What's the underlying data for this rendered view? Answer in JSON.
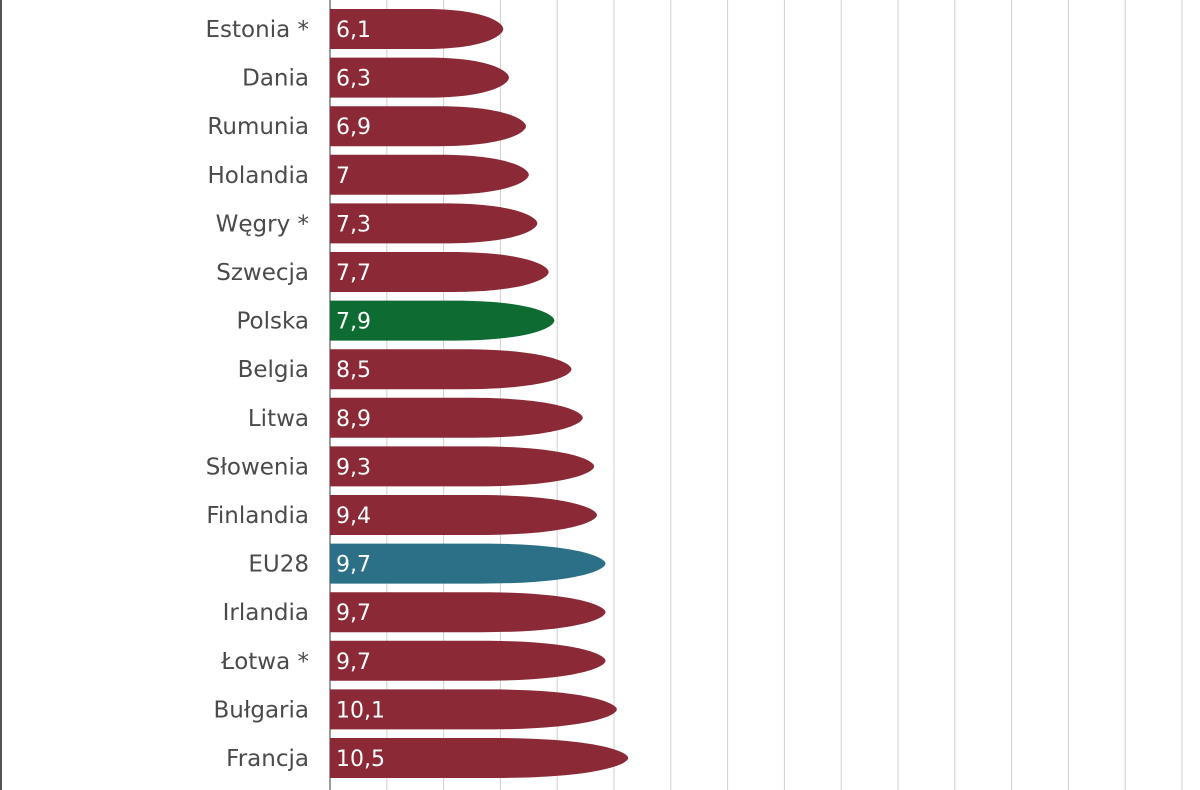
{
  "chart_data": {
    "type": "bar",
    "orientation": "horizontal",
    "categories": [
      "Estonia *",
      "Dania",
      "Rumunia",
      "Holandia",
      "Węgry *",
      "Szwecja",
      "Polska",
      "Belgia",
      "Litwa",
      "Słowenia",
      "Finlandia",
      "EU28",
      "Irlandia",
      "Łotwa *",
      "Bułgaria",
      "Francja"
    ],
    "values": [
      6.1,
      6.3,
      6.9,
      7,
      7.3,
      7.7,
      7.9,
      8.5,
      8.9,
      9.3,
      9.4,
      9.7,
      9.7,
      9.7,
      10.1,
      10.5
    ],
    "value_labels": [
      "6,1",
      "6,3",
      "6,9",
      "7",
      "7,3",
      "7,7",
      "7,9",
      "8,5",
      "8,9",
      "9,3",
      "9,4",
      "9,7",
      "9,7",
      "9,7",
      "10,1",
      "10,5"
    ],
    "colors": {
      "default": "#8b2a36",
      "Polska": "#0e6b32",
      "EU28": "#2b7086"
    },
    "xlim": [
      0,
      30
    ],
    "grid": true,
    "legend": "none",
    "title": "",
    "xlabel": "",
    "ylabel": ""
  }
}
